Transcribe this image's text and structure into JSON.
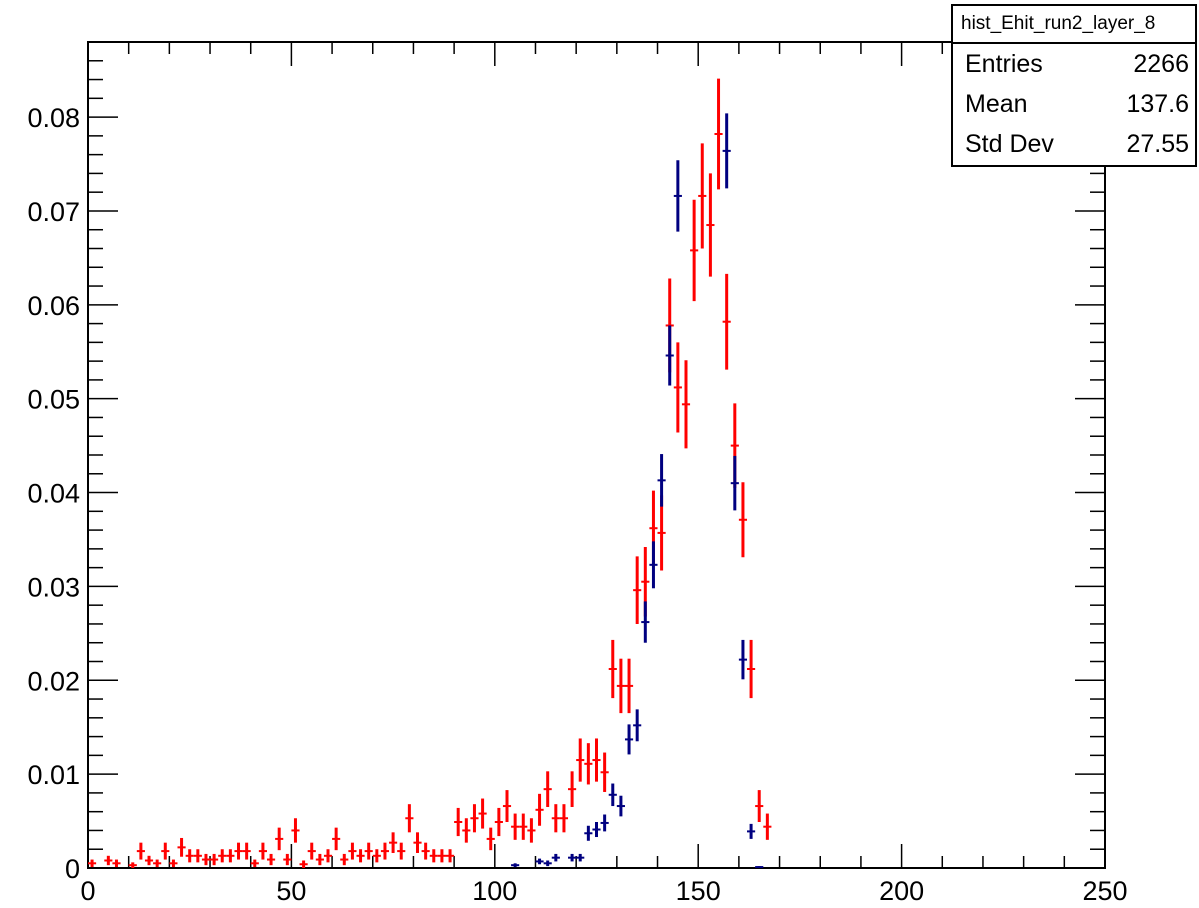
{
  "stats": {
    "title": "hist_Ehit_run2_layer_8",
    "rows": [
      {
        "label": "Entries",
        "value": "2266"
      },
      {
        "label": "Mean",
        "value": "137.6"
      },
      {
        "label": "Std Dev",
        "value": "27.55"
      }
    ]
  },
  "chart_data": {
    "type": "scatter",
    "title": "",
    "xlabel": "",
    "ylabel": "",
    "xlim": [
      0,
      250
    ],
    "ylim": [
      0,
      0.088
    ],
    "xticks": [
      "0",
      "50",
      "100",
      "150",
      "200",
      "250"
    ],
    "yticks": [
      "0",
      "0.01",
      "0.02",
      "0.03",
      "0.04",
      "0.05",
      "0.06",
      "0.07",
      "0.08"
    ],
    "x_tick_values": [
      0,
      50,
      100,
      150,
      200,
      250
    ],
    "y_tick_values": [
      0,
      0.01,
      0.02,
      0.03,
      0.04,
      0.05,
      0.06,
      0.07,
      0.08
    ],
    "bin_width": 2,
    "series": [
      {
        "color": "#ff0000",
        "x": [
          1,
          5,
          7,
          11,
          13,
          15,
          17,
          19,
          21,
          23,
          25,
          27,
          29,
          31,
          33,
          35,
          37,
          39,
          41,
          43,
          45,
          47,
          49,
          51,
          53,
          55,
          57,
          59,
          61,
          63,
          65,
          67,
          69,
          71,
          73,
          75,
          77,
          79,
          81,
          83,
          85,
          87,
          89,
          91,
          93,
          95,
          97,
          99,
          101,
          103,
          105,
          107,
          109,
          111,
          113,
          115,
          117,
          119,
          121,
          123,
          125,
          127,
          129,
          131,
          133,
          135,
          137,
          139,
          141,
          143,
          145,
          147,
          149,
          151,
          153,
          155,
          157,
          159,
          161,
          163,
          165,
          167
        ],
        "y": [
          0.0005,
          0.0008,
          0.0005,
          0.0003,
          0.0018,
          0.0008,
          0.0005,
          0.0018,
          0.0005,
          0.0022,
          0.0013,
          0.0013,
          0.0009,
          0.0009,
          0.0013,
          0.0013,
          0.0018,
          0.0018,
          0.0005,
          0.0018,
          0.0009,
          0.0031,
          0.0009,
          0.004,
          0.0004,
          0.0018,
          0.0009,
          0.0013,
          0.0031,
          0.0009,
          0.0018,
          0.0013,
          0.0018,
          0.0013,
          0.0018,
          0.0027,
          0.0018,
          0.0053,
          0.0027,
          0.0018,
          0.0013,
          0.0013,
          0.0013,
          0.0049,
          0.004,
          0.0053,
          0.0058,
          0.0031,
          0.0049,
          0.0066,
          0.0044,
          0.0044,
          0.004,
          0.0062,
          0.0084,
          0.0053,
          0.0053,
          0.0084,
          0.0115,
          0.0111,
          0.0115,
          0.0102,
          0.0212,
          0.0194,
          0.0194,
          0.0296,
          0.0305,
          0.0362,
          0.0357,
          0.0578,
          0.0512,
          0.0494,
          0.0658,
          0.0716,
          0.0685,
          0.0782,
          0.0582,
          0.045,
          0.0371,
          0.0212,
          0.0066,
          0.0044
        ],
        "err": [
          0.0004,
          0.0005,
          0.0004,
          0.0003,
          0.0009,
          0.0005,
          0.0004,
          0.0009,
          0.0004,
          0.001,
          0.0007,
          0.0007,
          0.0006,
          0.0006,
          0.0007,
          0.0007,
          0.0009,
          0.0009,
          0.0004,
          0.0009,
          0.0006,
          0.0012,
          0.0006,
          0.0013,
          0.0004,
          0.0009,
          0.0006,
          0.0007,
          0.0012,
          0.0006,
          0.0009,
          0.0007,
          0.0009,
          0.0007,
          0.0009,
          0.0011,
          0.0009,
          0.0015,
          0.0011,
          0.0009,
          0.0007,
          0.0007,
          0.0007,
          0.0015,
          0.0013,
          0.0015,
          0.0016,
          0.0012,
          0.0015,
          0.0017,
          0.0014,
          0.0014,
          0.0013,
          0.0017,
          0.0019,
          0.0015,
          0.0015,
          0.0019,
          0.0023,
          0.0022,
          0.0023,
          0.0021,
          0.0031,
          0.0029,
          0.0029,
          0.0036,
          0.0037,
          0.004,
          0.004,
          0.005,
          0.0048,
          0.0047,
          0.0054,
          0.0056,
          0.0055,
          0.0059,
          0.0051,
          0.0045,
          0.004,
          0.0031,
          0.0017,
          0.0014
        ]
      },
      {
        "color": "#000080",
        "x": [
          105,
          111,
          113,
          115,
          119,
          121,
          123,
          125,
          127,
          129,
          131,
          133,
          135,
          137,
          139,
          141,
          143,
          145,
          157,
          159,
          161,
          163,
          165
        ],
        "y": [
          0.0003,
          0.0007,
          0.0005,
          0.0011,
          0.0011,
          0.0011,
          0.0037,
          0.0041,
          0.0048,
          0.0078,
          0.0066,
          0.0137,
          0.0152,
          0.0262,
          0.0323,
          0.0413,
          0.0546,
          0.0716,
          0.0764,
          0.041,
          0.0222,
          0.0039,
          0.0001
        ],
        "err": [
          0.0002,
          0.0003,
          0.0003,
          0.0004,
          0.0004,
          0.0004,
          0.0008,
          0.0008,
          0.0009,
          0.0012,
          0.0011,
          0.0016,
          0.0017,
          0.0022,
          0.0025,
          0.0028,
          0.0032,
          0.0038,
          0.004,
          0.0029,
          0.0021,
          0.0008,
          0.0001
        ]
      }
    ]
  }
}
